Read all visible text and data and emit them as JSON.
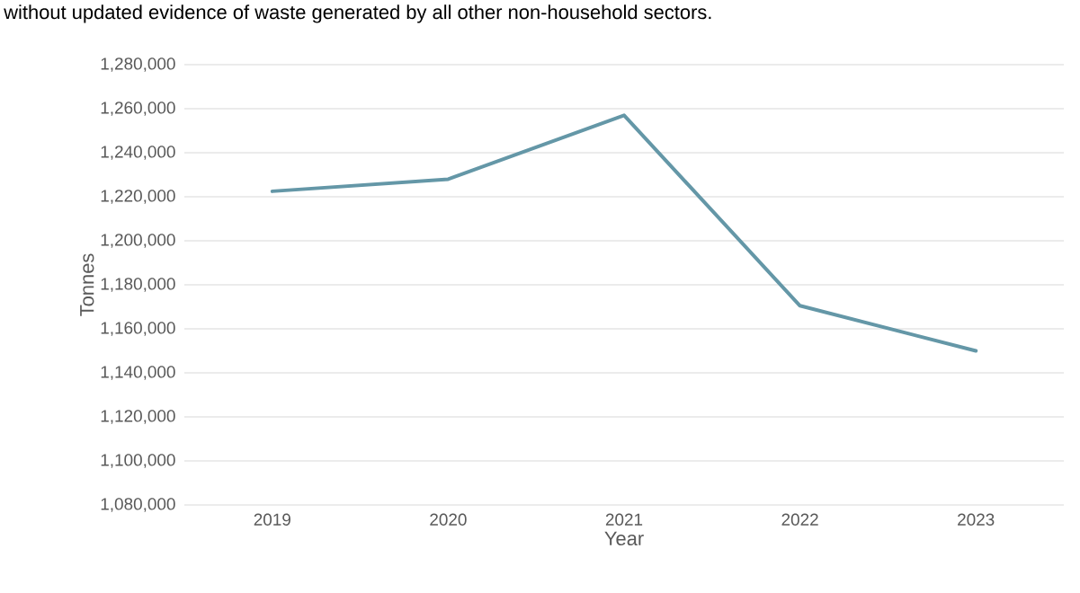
{
  "chart_data": {
    "type": "line",
    "annotations": [
      "without updated evidence of waste generated by all other non-household sectors."
    ],
    "xlabel": "Year",
    "ylabel": "Tonnes",
    "categories": [
      "2019",
      "2020",
      "2021",
      "2022",
      "2023"
    ],
    "series": [
      {
        "color": "#6497a7",
        "values": [
          1222500,
          1228000,
          1257000,
          1170500,
          1150000
        ]
      }
    ],
    "ylim": [
      1080000,
      1280000
    ],
    "yticks": [
      {
        "value": 1080000,
        "label": "1,080,000"
      },
      {
        "value": 1100000,
        "label": "1,100,000"
      },
      {
        "value": 1120000,
        "label": "1,120,000"
      },
      {
        "value": 1140000,
        "label": "1,140,000"
      },
      {
        "value": 1160000,
        "label": "1,160,000"
      },
      {
        "value": 1180000,
        "label": "1,180,000"
      },
      {
        "value": 1200000,
        "label": "1,200,000"
      },
      {
        "value": 1220000,
        "label": "1,220,000"
      },
      {
        "value": 1240000,
        "label": "1,240,000"
      },
      {
        "value": 1260000,
        "label": "1,260,000"
      },
      {
        "value": 1280000,
        "label": "1,280,000"
      }
    ],
    "grid": "y"
  }
}
